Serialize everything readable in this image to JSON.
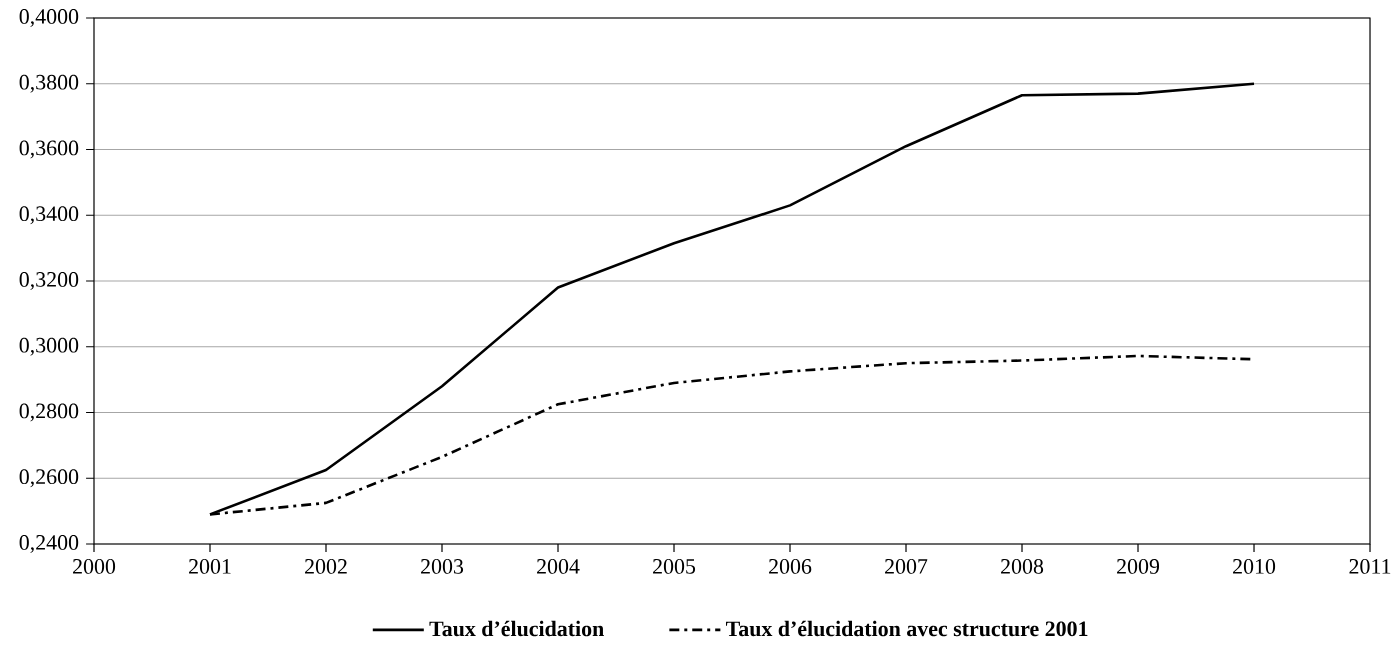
{
  "chart_data": {
    "type": "line",
    "x": [
      2001,
      2002,
      2003,
      2004,
      2005,
      2006,
      2007,
      2008,
      2009,
      2010
    ],
    "series": [
      {
        "name": "Taux d’élucidation",
        "color": "#000000",
        "line_style": "solid",
        "values": [
          0.249,
          0.2625,
          0.288,
          0.318,
          0.3315,
          0.343,
          0.361,
          0.3765,
          0.377,
          0.38
        ]
      },
      {
        "name": "Taux d’élucidation avec structure 2001",
        "color": "#000000",
        "line_style": "dashed",
        "values": [
          0.249,
          0.2525,
          0.2665,
          0.2825,
          0.289,
          0.2925,
          0.295,
          0.2958,
          0.2972,
          0.2962
        ]
      }
    ],
    "xlim": [
      2000,
      2011
    ],
    "xticks": [
      2000,
      2001,
      2002,
      2003,
      2004,
      2005,
      2006,
      2007,
      2008,
      2009,
      2010,
      2011
    ],
    "ylim": [
      0.24,
      0.4
    ],
    "yticks": [
      {
        "value": 0.24,
        "label": "0,2400"
      },
      {
        "value": 0.26,
        "label": "0,2600"
      },
      {
        "value": 0.28,
        "label": "0,2800"
      },
      {
        "value": 0.3,
        "label": "0,3000"
      },
      {
        "value": 0.32,
        "label": "0,3200"
      },
      {
        "value": 0.34,
        "label": "0,3400"
      },
      {
        "value": 0.36,
        "label": "0,3600"
      },
      {
        "value": 0.38,
        "label": "0,3800"
      },
      {
        "value": 0.4,
        "label": "0,4000"
      }
    ],
    "grid": "y",
    "legend": "bottom",
    "marker": "none"
  }
}
